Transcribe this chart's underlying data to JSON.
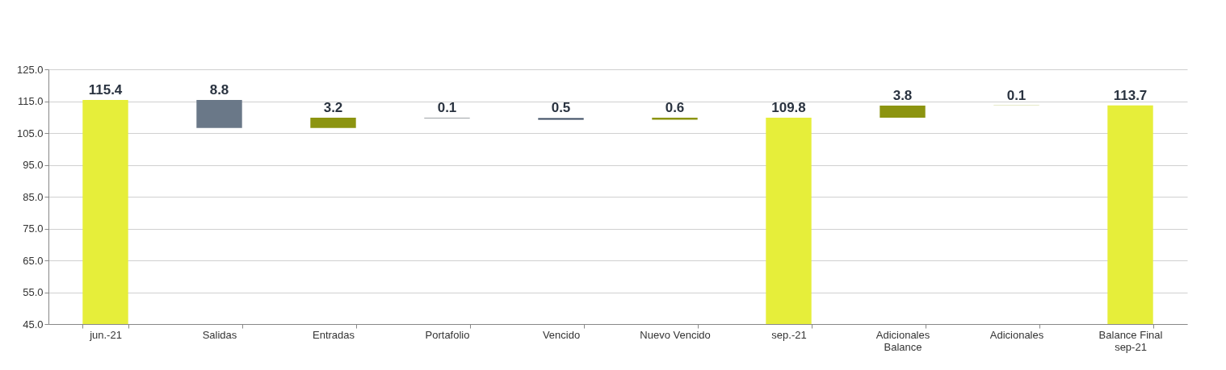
{
  "chart_data": {
    "type": "bar",
    "categories": [
      "jun.-21",
      "Salidas",
      "Entradas",
      "Portafolio",
      "Vencido",
      "Nuevo Vencido",
      "sep.-21",
      "Adicionales\nBalance",
      "Adicionales",
      "Balance Final\nsep-21"
    ],
    "values": [
      115.4,
      8.8,
      3.2,
      0.1,
      0.5,
      0.6,
      109.8,
      3.8,
      0.1,
      113.7
    ],
    "base": [
      0,
      106.6,
      106.6,
      109.7,
      109.2,
      109.2,
      0,
      109.8,
      113.6,
      0
    ],
    "colors": [
      "#e6ee3a",
      "#6a7888",
      "#8c9410",
      "#404850",
      "#3a4a60",
      "#8c9410",
      "#e6ee3a",
      "#8c9410",
      "#a0a820",
      "#e6ee3a"
    ],
    "ylim": [
      45.0,
      125.0
    ],
    "yticks": [
      {
        "value": 45,
        "label": "45.0"
      },
      {
        "value": 55,
        "label": "55.0"
      },
      {
        "value": 65,
        "label": "65.0"
      },
      {
        "value": 75,
        "label": "75.0"
      },
      {
        "value": 85,
        "label": "85.0"
      },
      {
        "value": 95,
        "label": "95.0"
      },
      {
        "value": 105,
        "label": "105.0"
      },
      {
        "value": 115,
        "label": "115.0"
      },
      {
        "value": 125,
        "label": "125.0"
      }
    ],
    "data_labels": true,
    "grid": "y"
  }
}
